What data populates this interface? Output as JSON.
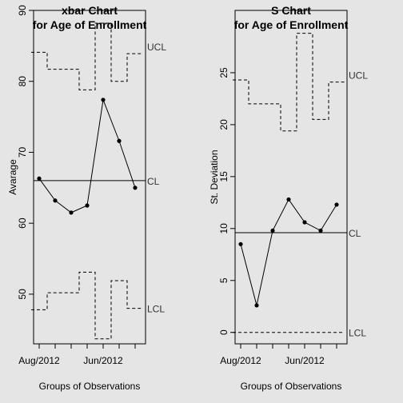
{
  "chart_data": [
    {
      "type": "line",
      "chart_kind": "xbar control chart",
      "title": [
        "xbar Chart",
        "for Age of Enrollment"
      ],
      "xlabel": "Groups of Observations",
      "ylabel": "Avarage",
      "x_tick_labels": [
        {
          "group": 1,
          "label": "Aug/2012"
        },
        {
          "group": 5,
          "label": "Jun/2012"
        }
      ],
      "ylim": [
        43,
        90
      ],
      "yticks": [
        50,
        60,
        70,
        80,
        90
      ],
      "groups": [
        1,
        2,
        3,
        4,
        5,
        6,
        7
      ],
      "values": [
        66.3,
        63.2,
        61.5,
        62.5,
        77.4,
        71.6,
        65.0
      ],
      "center_line": 66.0,
      "ucl": [
        84.1,
        81.7,
        81.7,
        78.8,
        88.2,
        80.0,
        83.9
      ],
      "lcl": [
        47.8,
        50.2,
        50.2,
        53.1,
        43.7,
        51.9,
        48.0
      ],
      "line_labels": {
        "ucl": "UCL",
        "cl": "CL",
        "lcl": "LCL"
      }
    },
    {
      "type": "line",
      "chart_kind": "S control chart",
      "title": [
        "S Chart",
        "for Age of Enrollment"
      ],
      "xlabel": "Groups of Observations",
      "ylabel": "St. Deviation",
      "x_tick_labels": [
        {
          "group": 1,
          "label": "Aug/2012"
        },
        {
          "group": 5,
          "label": "Jun/2012"
        }
      ],
      "ylim": [
        -1.1,
        31
      ],
      "yticks": [
        0,
        5,
        10,
        15,
        20,
        25
      ],
      "groups": [
        1,
        2,
        3,
        4,
        5,
        6,
        7
      ],
      "values": [
        8.5,
        2.6,
        9.8,
        12.8,
        10.6,
        9.8,
        12.3
      ],
      "center_line": 9.6,
      "ucl": [
        24.3,
        22.0,
        22.0,
        19.4,
        28.8,
        20.5,
        24.1
      ],
      "lcl": [
        0,
        0,
        0,
        0,
        0,
        0,
        0
      ],
      "line_labels": {
        "ucl": "UCL",
        "cl": "CL",
        "lcl": "LCL"
      }
    }
  ]
}
